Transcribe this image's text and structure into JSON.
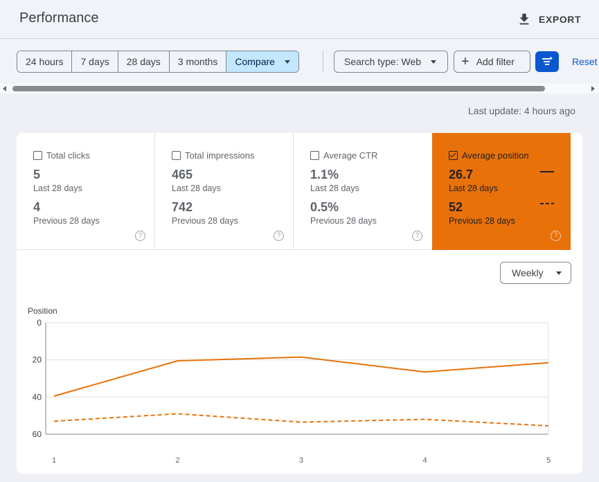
{
  "header": {
    "title": "Performance",
    "export_label": "EXPORT"
  },
  "toolbar": {
    "date_ranges": [
      "24 hours",
      "7 days",
      "28 days",
      "3 months"
    ],
    "compare_label": "Compare",
    "search_type_label": "Search type: Web",
    "add_filter_label": "Add filter",
    "reset_label": "Reset"
  },
  "status": {
    "last_update": "Last update: 4 hours ago"
  },
  "metrics": [
    {
      "label": "Total clicks",
      "value": "5",
      "period": "Last 28 days",
      "prev_value": "4",
      "prev_period": "Previous 28 days",
      "checked": false
    },
    {
      "label": "Total impressions",
      "value": "465",
      "period": "Last 28 days",
      "prev_value": "742",
      "prev_period": "Previous 28 days",
      "checked": false
    },
    {
      "label": "Average CTR",
      "value": "1.1%",
      "period": "Last 28 days",
      "prev_value": "0.5%",
      "prev_period": "Previous 28 days",
      "checked": false
    },
    {
      "label": "Average position",
      "value": "26.7",
      "period": "Last 28 days",
      "prev_value": "52",
      "prev_period": "Previous 28 days",
      "checked": true
    }
  ],
  "granularity_label": "Weekly",
  "colors": {
    "accent": "#e8710a",
    "primary": "#0b57d0",
    "compare_active": "#c2e7ff"
  },
  "chart_data": {
    "type": "line",
    "ylabel": "Position",
    "ylim": [
      0,
      60
    ],
    "y_inverted": true,
    "yticks": [
      0,
      20,
      40,
      60
    ],
    "x": [
      1,
      2,
      3,
      4,
      5
    ],
    "xticks": [
      "1",
      "2",
      "3",
      "4",
      "5"
    ],
    "grid": true,
    "series": [
      {
        "style": "solid",
        "values": [
          39.5,
          20.5,
          18.5,
          26.5,
          21.5
        ]
      },
      {
        "style": "dashed",
        "values": [
          53,
          49,
          53.5,
          52,
          55.5
        ]
      }
    ]
  }
}
